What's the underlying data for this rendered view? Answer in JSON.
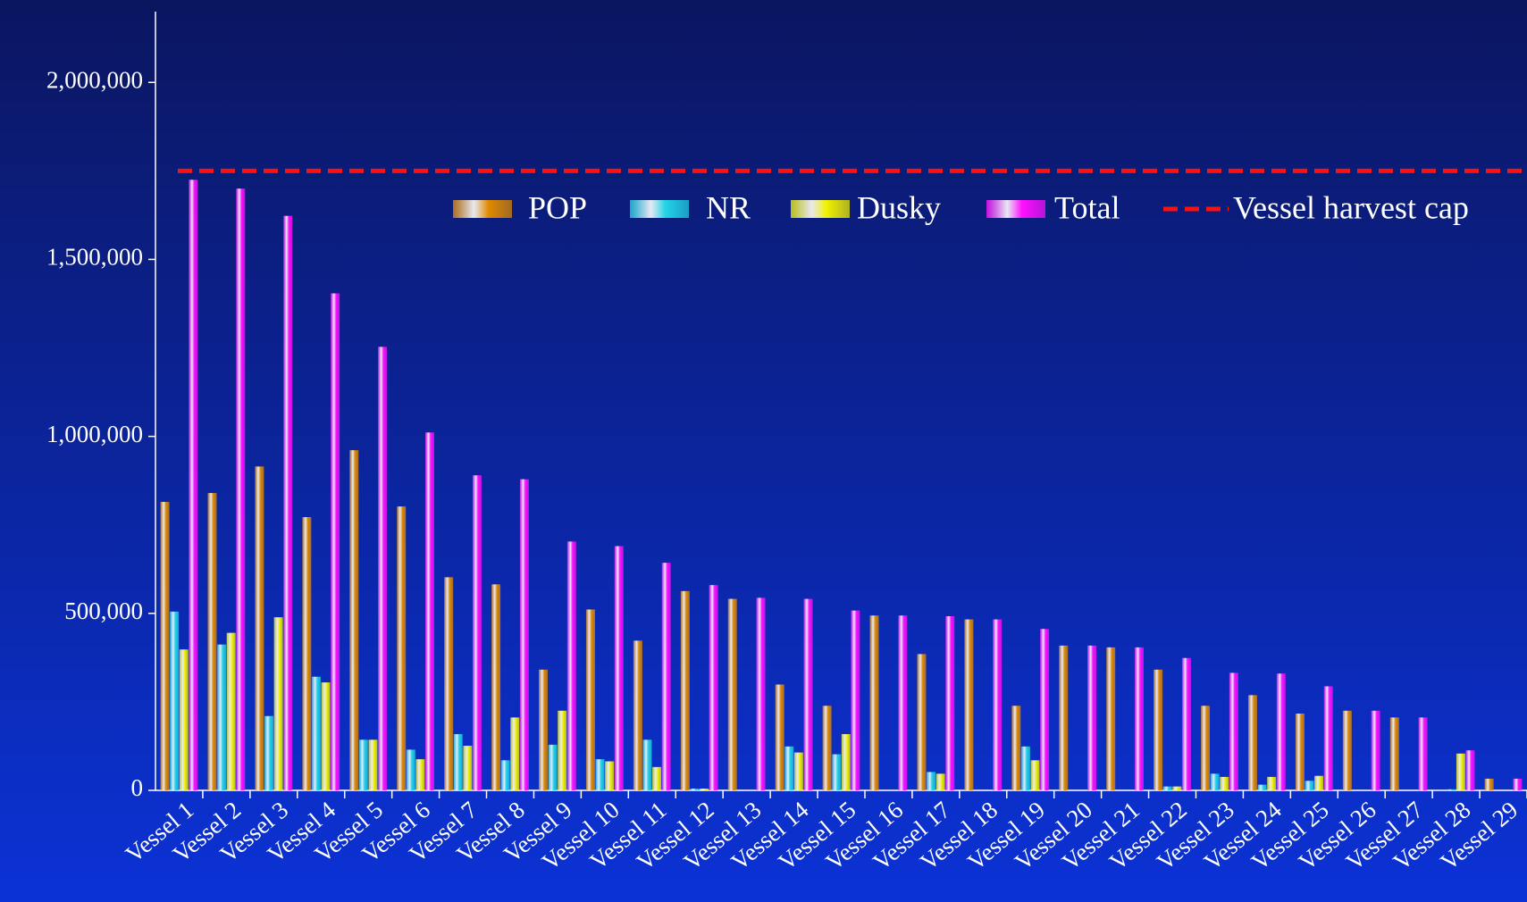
{
  "chart_data": {
    "type": "bar",
    "categories": [
      "Vessel 1",
      "Vessel 2",
      "Vessel 3",
      "Vessel 4",
      "Vessel 5",
      "Vessel 6",
      "Vessel 7",
      "Vessel 8",
      "Vessel 9",
      "Vessel 10",
      "Vessel 11",
      "Vessel 12",
      "Vessel 13",
      "Vessel 14",
      "Vessel 15",
      "Vessel 16",
      "Vessel 17",
      "Vessel 18",
      "Vessel 19",
      "Vessel 20",
      "Vessel 21",
      "Vessel 22",
      "Vessel 23",
      "Vessel 24",
      "Vessel 25",
      "Vessel 26",
      "Vessel 27",
      "Vessel 28",
      "Vessel 29"
    ],
    "series": [
      {
        "name": "POP",
        "color": "#e08a00",
        "values": [
          815000,
          840000,
          915000,
          772000,
          961000,
          802000,
          602000,
          582000,
          341000,
          511000,
          423000,
          563000,
          541000,
          299000,
          239000,
          494000,
          385000,
          483000,
          239000,
          409000,
          404000,
          341000,
          239000,
          269000,
          217000,
          225000,
          206000,
          0,
          33000
        ]
      },
      {
        "name": "NR",
        "color": "#22d4e6",
        "values": [
          505000,
          412000,
          210000,
          321000,
          143000,
          115000,
          159000,
          85000,
          129000,
          88000,
          143000,
          5000,
          0,
          124000,
          102000,
          0,
          52000,
          0,
          124000,
          0,
          0,
          11000,
          47000,
          16000,
          27000,
          0,
          0,
          3000,
          0
        ]
      },
      {
        "name": "Dusky",
        "color": "#f2f200",
        "values": [
          398000,
          445000,
          489000,
          305000,
          143000,
          88000,
          126000,
          206000,
          225000,
          82000,
          66000,
          5000,
          0,
          107000,
          159000,
          0,
          47000,
          0,
          85000,
          0,
          0,
          11000,
          38000,
          38000,
          41000,
          0,
          0,
          104000,
          0
        ]
      },
      {
        "name": "Total",
        "color": "#ff10ff",
        "values": [
          1725000,
          1700000,
          1623000,
          1404000,
          1253000,
          1011000,
          890000,
          879000,
          703000,
          690000,
          643000,
          580000,
          544000,
          541000,
          508000,
          494000,
          492000,
          483000,
          456000,
          409000,
          404000,
          374000,
          332000,
          330000,
          294000,
          225000,
          206000,
          113000,
          33000
        ]
      }
    ],
    "cap": {
      "name": "Vessel harvest cap",
      "value": 1750000,
      "color": "#ff1010"
    },
    "ylim": [
      0,
      2200000
    ],
    "yticks": [
      0,
      {
        "value": 500000,
        "label": "500,000"
      },
      {
        "value": 1000000,
        "label": "1,000,000"
      },
      {
        "value": 1500000,
        "label": "1,500,000"
      },
      {
        "value": 2000000,
        "label": "2,000,000"
      }
    ]
  }
}
